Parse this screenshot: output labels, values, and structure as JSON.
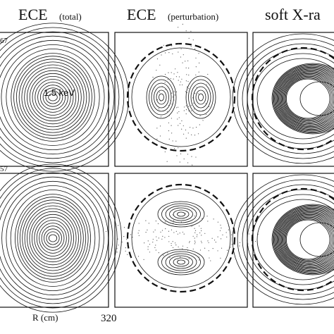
{
  "titles": [
    {
      "main": "ECE",
      "sub": "(total)"
    },
    {
      "main": "ECE",
      "sub": "(perturbation)"
    },
    {
      "main": "soft X-ra"
    }
  ],
  "annotations": {
    "contour_label": "1.5 keV",
    "row_labels": [
      "67",
      "57"
    ]
  },
  "axis": {
    "label": "R (cm)",
    "tick": "320"
  }
}
